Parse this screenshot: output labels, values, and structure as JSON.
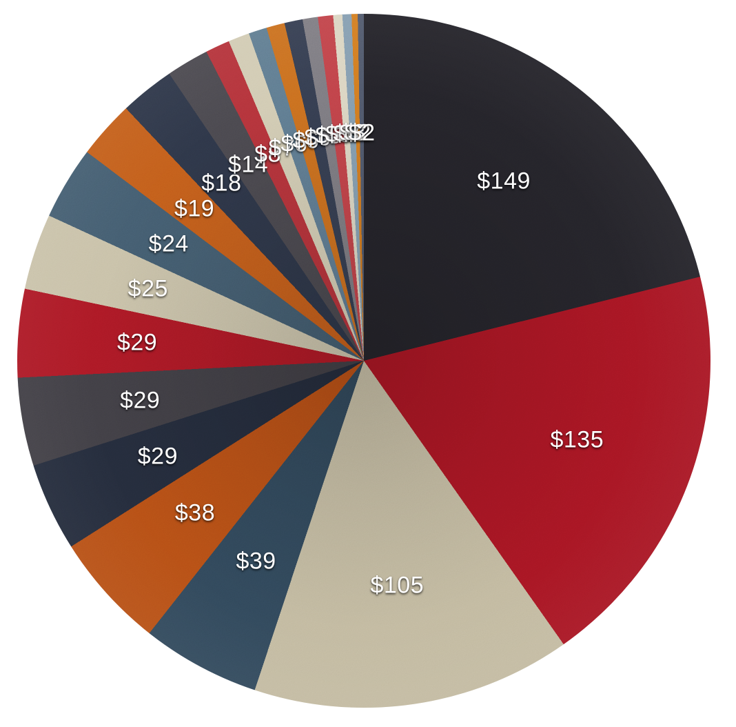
{
  "chart_data": {
    "type": "pie",
    "title": "",
    "unit_prefix": "$",
    "start_angle_deg": 0,
    "direction": "clockwise",
    "label_radius_ratio": 0.656,
    "legend": "none",
    "background": "#ffffff",
    "label_color": "#ffffff",
    "total": 706,
    "palette_cycle": [
      "black",
      "red",
      "cream",
      "steel-blue",
      "orange",
      "navy"
    ],
    "slices": [
      {
        "label": "$149",
        "value": 149,
        "color": "#232228",
        "color_name": "black"
      },
      {
        "label": "$135",
        "value": 135,
        "color": "#a31522",
        "color_name": "red"
      },
      {
        "label": "$105",
        "value": 105,
        "color": "#bfb69b",
        "color_name": "cream"
      },
      {
        "label": "$39",
        "value": 39,
        "color": "#2f4557",
        "color_name": "steel-blue"
      },
      {
        "label": "$38",
        "value": 38,
        "color": "#b34c15",
        "color_name": "orange"
      },
      {
        "label": "$29",
        "value": 29,
        "color": "#232a39",
        "color_name": "navy"
      },
      {
        "label": "$29",
        "value": 29,
        "color": "#3e3c42",
        "color_name": "black"
      },
      {
        "label": "$29",
        "value": 29,
        "color": "#a81824",
        "color_name": "red"
      },
      {
        "label": "$25",
        "value": 25,
        "color": "#c6bea4",
        "color_name": "cream"
      },
      {
        "label": "$24",
        "value": 24,
        "color": "#41596b",
        "color_name": "steel-blue"
      },
      {
        "label": "$19",
        "value": 19,
        "color": "#c05a1a",
        "color_name": "orange"
      },
      {
        "label": "$18",
        "value": 18,
        "color": "#2c3445",
        "color_name": "navy"
      },
      {
        "label": "$14",
        "value": 14,
        "color": "#47454b",
        "color_name": "black"
      },
      {
        "label": "$8",
        "value": 8,
        "color": "#b03138",
        "color_name": "red"
      },
      {
        "label": "$7",
        "value": 7,
        "color": "#cfc8af",
        "color_name": "cream"
      },
      {
        "label": "$6",
        "value": 6,
        "color": "#5b768b",
        "color_name": "steel-blue"
      },
      {
        "label": "$6",
        "value": 6,
        "color": "#c76a1e",
        "color_name": "orange"
      },
      {
        "label": "$6",
        "value": 6,
        "color": "#333b4d",
        "color_name": "navy"
      },
      {
        "label": "$5",
        "value": 5,
        "color": "#77757b",
        "color_name": "black"
      },
      {
        "label": "$5",
        "value": 5,
        "color": "#bd4046",
        "color_name": "red"
      },
      {
        "label": "$3",
        "value": 3,
        "color": "#d9d3bf",
        "color_name": "cream"
      },
      {
        "label": "$3",
        "value": 3,
        "color": "#7e98ac",
        "color_name": "steel-blue"
      },
      {
        "label": "$2",
        "value": 2,
        "color": "#d0761f",
        "color_name": "orange"
      },
      {
        "label": "$2",
        "value": 2,
        "color": "#4d5567",
        "color_name": "navy"
      }
    ]
  }
}
